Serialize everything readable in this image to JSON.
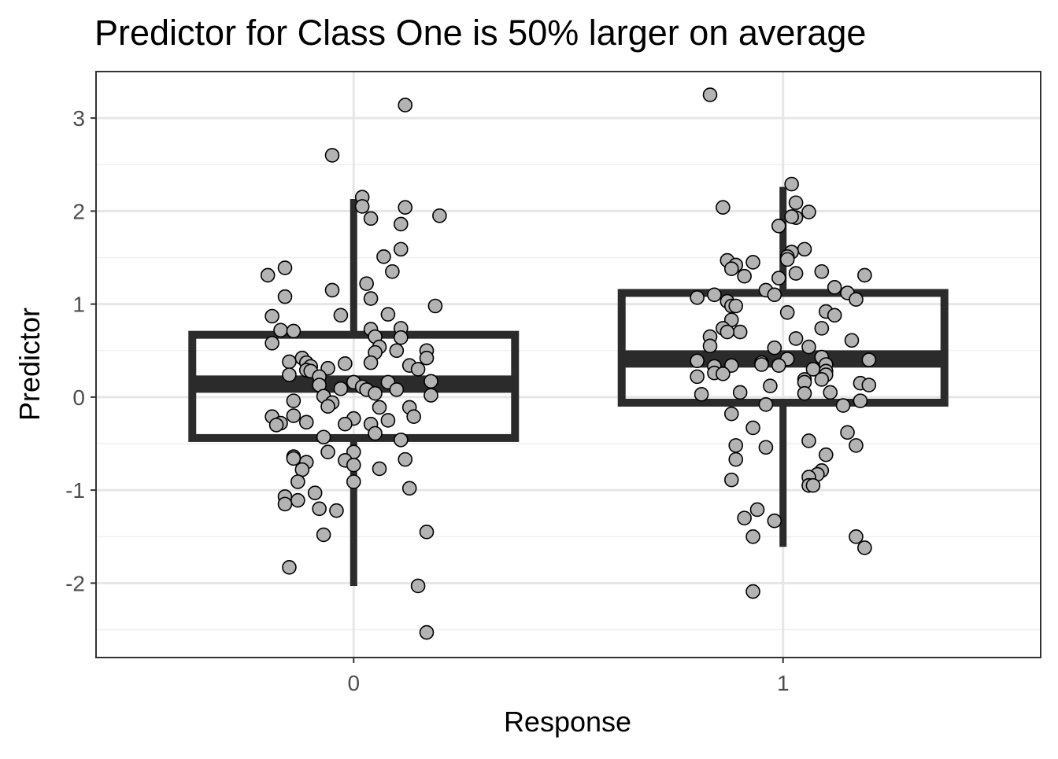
{
  "chart_data": {
    "type": "boxplot",
    "title": "Predictor for Class One is 50% larger on average",
    "xlabel": "Response",
    "ylabel": "Predictor",
    "categories": [
      "0",
      "1"
    ],
    "ylim": [
      -2.8,
      3.5
    ],
    "yticks": [
      -2,
      -1,
      0,
      1,
      2,
      3
    ],
    "yticklabels": [
      "-2",
      "-1",
      "0",
      "1",
      "2",
      "3"
    ],
    "grid": true,
    "colors": {
      "box": "#2b2b2b",
      "point_fill": "#b3b3b3",
      "point_stroke": "#000000",
      "grid": "#e6e6e6",
      "border": "#333333"
    },
    "boxes": [
      {
        "category": "0",
        "whisker_low": -2.03,
        "q1": -0.44,
        "median": 0.14,
        "q3": 0.67,
        "whisker_high": 2.13
      },
      {
        "category": "1",
        "whisker_low": -1.61,
        "q1": -0.06,
        "median": 0.41,
        "q3": 1.12,
        "whisker_high": 2.26
      }
    ],
    "points": [
      [
        {
          "x": 0.12,
          "y": 3.14
        },
        {
          "x": -0.05,
          "y": 2.6
        },
        {
          "x": 0.02,
          "y": 2.15
        },
        {
          "x": 0.02,
          "y": 2.05
        },
        {
          "x": 0.12,
          "y": 2.04
        },
        {
          "x": 0.2,
          "y": 1.95
        },
        {
          "x": 0.04,
          "y": 1.92
        },
        {
          "x": 0.11,
          "y": 1.86
        },
        {
          "x": 0.11,
          "y": 1.59
        },
        {
          "x": 0.07,
          "y": 1.51
        },
        {
          "x": 0.09,
          "y": 1.35
        },
        {
          "x": -0.16,
          "y": 1.39
        },
        {
          "x": -0.2,
          "y": 1.31
        },
        {
          "x": 0.03,
          "y": 1.22
        },
        {
          "x": -0.05,
          "y": 1.15
        },
        {
          "x": -0.16,
          "y": 1.08
        },
        {
          "x": 0.04,
          "y": 1.06
        },
        {
          "x": 0.19,
          "y": 0.98
        },
        {
          "x": 0.08,
          "y": 0.89
        },
        {
          "x": -0.19,
          "y": 0.87
        },
        {
          "x": -0.03,
          "y": 0.88
        },
        {
          "x": -0.17,
          "y": 0.72
        },
        {
          "x": -0.14,
          "y": 0.71
        },
        {
          "x": 0.04,
          "y": 0.73
        },
        {
          "x": 0.11,
          "y": 0.74
        },
        {
          "x": 0.11,
          "y": 0.64
        },
        {
          "x": 0.05,
          "y": 0.65
        },
        {
          "x": -0.19,
          "y": 0.58
        },
        {
          "x": 0.06,
          "y": 0.54
        },
        {
          "x": 0.17,
          "y": 0.5
        },
        {
          "x": 0.05,
          "y": 0.48
        },
        {
          "x": 0.1,
          "y": 0.5
        },
        {
          "x": 0.17,
          "y": 0.42
        },
        {
          "x": -0.12,
          "y": 0.42
        },
        {
          "x": -0.11,
          "y": 0.37
        },
        {
          "x": -0.15,
          "y": 0.38
        },
        {
          "x": 0.04,
          "y": 0.37
        },
        {
          "x": -0.02,
          "y": 0.36
        },
        {
          "x": -0.1,
          "y": 0.33
        },
        {
          "x": -0.06,
          "y": 0.31
        },
        {
          "x": -0.11,
          "y": 0.29
        },
        {
          "x": -0.1,
          "y": 0.28
        },
        {
          "x": 0.13,
          "y": 0.34
        },
        {
          "x": 0.15,
          "y": 0.3
        },
        {
          "x": -0.15,
          "y": 0.24
        },
        {
          "x": -0.08,
          "y": 0.22
        },
        {
          "x": 0.18,
          "y": 0.17
        },
        {
          "x": 0.0,
          "y": 0.16
        },
        {
          "x": 0.08,
          "y": 0.16
        },
        {
          "x": -0.08,
          "y": 0.13
        },
        {
          "x": 0.02,
          "y": 0.11
        },
        {
          "x": 0.03,
          "y": 0.08
        },
        {
          "x": -0.03,
          "y": 0.09
        },
        {
          "x": 0.1,
          "y": 0.08
        },
        {
          "x": 0.05,
          "y": 0.04
        },
        {
          "x": -0.07,
          "y": 0.01
        },
        {
          "x": 0.18,
          "y": 0.02
        },
        {
          "x": -0.14,
          "y": -0.04
        },
        {
          "x": -0.05,
          "y": -0.06
        },
        {
          "x": -0.06,
          "y": -0.1
        },
        {
          "x": 0.06,
          "y": -0.11
        },
        {
          "x": 0.13,
          "y": -0.11
        },
        {
          "x": -0.19,
          "y": -0.21
        },
        {
          "x": -0.14,
          "y": -0.2
        },
        {
          "x": 0.14,
          "y": -0.21
        },
        {
          "x": 0.0,
          "y": -0.23
        },
        {
          "x": 0.08,
          "y": -0.25
        },
        {
          "x": -0.17,
          "y": -0.28
        },
        {
          "x": -0.11,
          "y": -0.27
        },
        {
          "x": -0.02,
          "y": -0.29
        },
        {
          "x": 0.04,
          "y": -0.29
        },
        {
          "x": -0.18,
          "y": -0.3
        },
        {
          "x": 0.05,
          "y": -0.39
        },
        {
          "x": -0.07,
          "y": -0.43
        },
        {
          "x": 0.11,
          "y": -0.46
        },
        {
          "x": 0.0,
          "y": -0.59
        },
        {
          "x": -0.06,
          "y": -0.59
        },
        {
          "x": -0.14,
          "y": -0.64
        },
        {
          "x": -0.14,
          "y": -0.66
        },
        {
          "x": 0.12,
          "y": -0.67
        },
        {
          "x": -0.02,
          "y": -0.68
        },
        {
          "x": -0.11,
          "y": -0.7
        },
        {
          "x": 0.0,
          "y": -0.73
        },
        {
          "x": 0.06,
          "y": -0.77
        },
        {
          "x": -0.12,
          "y": -0.78
        },
        {
          "x": -0.13,
          "y": -0.91
        },
        {
          "x": 0.0,
          "y": -0.91
        },
        {
          "x": 0.13,
          "y": -0.98
        },
        {
          "x": -0.09,
          "y": -1.03
        },
        {
          "x": -0.16,
          "y": -1.07
        },
        {
          "x": -0.13,
          "y": -1.11
        },
        {
          "x": -0.16,
          "y": -1.15
        },
        {
          "x": -0.08,
          "y": -1.2
        },
        {
          "x": -0.04,
          "y": -1.22
        },
        {
          "x": 0.17,
          "y": -1.45
        },
        {
          "x": -0.07,
          "y": -1.48
        },
        {
          "x": -0.15,
          "y": -1.83
        },
        {
          "x": 0.15,
          "y": -2.03
        },
        {
          "x": 0.17,
          "y": -2.53
        }
      ],
      [
        {
          "x": -0.17,
          "y": 3.25
        },
        {
          "x": 0.02,
          "y": 2.29
        },
        {
          "x": -0.14,
          "y": 2.04
        },
        {
          "x": 0.03,
          "y": 2.09
        },
        {
          "x": 0.06,
          "y": 1.99
        },
        {
          "x": 0.03,
          "y": 1.93
        },
        {
          "x": 0.02,
          "y": 1.94
        },
        {
          "x": -0.01,
          "y": 1.84
        },
        {
          "x": 0.05,
          "y": 1.59
        },
        {
          "x": 0.02,
          "y": 1.56
        },
        {
          "x": 0.01,
          "y": 1.51
        },
        {
          "x": 0.01,
          "y": 1.48
        },
        {
          "x": -0.13,
          "y": 1.47
        },
        {
          "x": -0.07,
          "y": 1.45
        },
        {
          "x": -0.11,
          "y": 1.42
        },
        {
          "x": -0.12,
          "y": 1.38
        },
        {
          "x": 0.03,
          "y": 1.33
        },
        {
          "x": 0.09,
          "y": 1.35
        },
        {
          "x": 0.19,
          "y": 1.31
        },
        {
          "x": -0.09,
          "y": 1.3
        },
        {
          "x": -0.01,
          "y": 1.28
        },
        {
          "x": 0.12,
          "y": 1.18
        },
        {
          "x": -0.04,
          "y": 1.15
        },
        {
          "x": 0.15,
          "y": 1.12
        },
        {
          "x": -0.02,
          "y": 1.1
        },
        {
          "x": -0.16,
          "y": 1.1
        },
        {
          "x": -0.2,
          "y": 1.07
        },
        {
          "x": 0.17,
          "y": 1.05
        },
        {
          "x": -0.13,
          "y": 1.03
        },
        {
          "x": -0.12,
          "y": 0.98
        },
        {
          "x": -0.11,
          "y": 0.98
        },
        {
          "x": 0.1,
          "y": 0.92
        },
        {
          "x": 0.01,
          "y": 0.91
        },
        {
          "x": 0.12,
          "y": 0.88
        },
        {
          "x": -0.12,
          "y": 0.83
        },
        {
          "x": 0.09,
          "y": 0.74
        },
        {
          "x": -0.14,
          "y": 0.74
        },
        {
          "x": -0.1,
          "y": 0.7
        },
        {
          "x": -0.13,
          "y": 0.7
        },
        {
          "x": -0.17,
          "y": 0.65
        },
        {
          "x": 0.03,
          "y": 0.63
        },
        {
          "x": 0.16,
          "y": 0.61
        },
        {
          "x": -0.17,
          "y": 0.55
        },
        {
          "x": 0.06,
          "y": 0.54
        },
        {
          "x": -0.02,
          "y": 0.53
        },
        {
          "x": 0.09,
          "y": 0.43
        },
        {
          "x": 0.01,
          "y": 0.41
        },
        {
          "x": 0.2,
          "y": 0.4
        },
        {
          "x": -0.2,
          "y": 0.39
        },
        {
          "x": -0.05,
          "y": 0.37
        },
        {
          "x": -0.05,
          "y": 0.35
        },
        {
          "x": 0.1,
          "y": 0.35
        },
        {
          "x": -0.16,
          "y": 0.33
        },
        {
          "x": -0.12,
          "y": 0.34
        },
        {
          "x": -0.01,
          "y": 0.34
        },
        {
          "x": 0.07,
          "y": 0.3
        },
        {
          "x": 0.1,
          "y": 0.28
        },
        {
          "x": -0.16,
          "y": 0.26
        },
        {
          "x": -0.14,
          "y": 0.25
        },
        {
          "x": 0.1,
          "y": 0.24
        },
        {
          "x": -0.2,
          "y": 0.22
        },
        {
          "x": 0.05,
          "y": 0.19
        },
        {
          "x": 0.05,
          "y": 0.16
        },
        {
          "x": 0.09,
          "y": 0.19
        },
        {
          "x": 0.18,
          "y": 0.15
        },
        {
          "x": -0.03,
          "y": 0.12
        },
        {
          "x": 0.2,
          "y": 0.13
        },
        {
          "x": -0.1,
          "y": 0.05
        },
        {
          "x": 0.05,
          "y": 0.04
        },
        {
          "x": -0.19,
          "y": 0.03
        },
        {
          "x": 0.11,
          "y": 0.05
        },
        {
          "x": 0.18,
          "y": -0.04
        },
        {
          "x": -0.04,
          "y": -0.08
        },
        {
          "x": 0.14,
          "y": -0.09
        },
        {
          "x": -0.12,
          "y": -0.18
        },
        {
          "x": -0.07,
          "y": -0.33
        },
        {
          "x": 0.15,
          "y": -0.38
        },
        {
          "x": 0.06,
          "y": -0.47
        },
        {
          "x": -0.11,
          "y": -0.52
        },
        {
          "x": -0.04,
          "y": -0.54
        },
        {
          "x": 0.17,
          "y": -0.52
        },
        {
          "x": 0.1,
          "y": -0.62
        },
        {
          "x": -0.11,
          "y": -0.67
        },
        {
          "x": 0.09,
          "y": -0.79
        },
        {
          "x": 0.08,
          "y": -0.83
        },
        {
          "x": 0.06,
          "y": -0.86
        },
        {
          "x": -0.12,
          "y": -0.89
        },
        {
          "x": 0.06,
          "y": -0.95
        },
        {
          "x": 0.07,
          "y": -0.95
        },
        {
          "x": -0.06,
          "y": -1.21
        },
        {
          "x": -0.09,
          "y": -1.3
        },
        {
          "x": -0.02,
          "y": -1.33
        },
        {
          "x": 0.17,
          "y": -1.5
        },
        {
          "x": -0.07,
          "y": -1.5
        },
        {
          "x": 0.19,
          "y": -1.62
        },
        {
          "x": -0.07,
          "y": -2.09
        }
      ]
    ]
  }
}
